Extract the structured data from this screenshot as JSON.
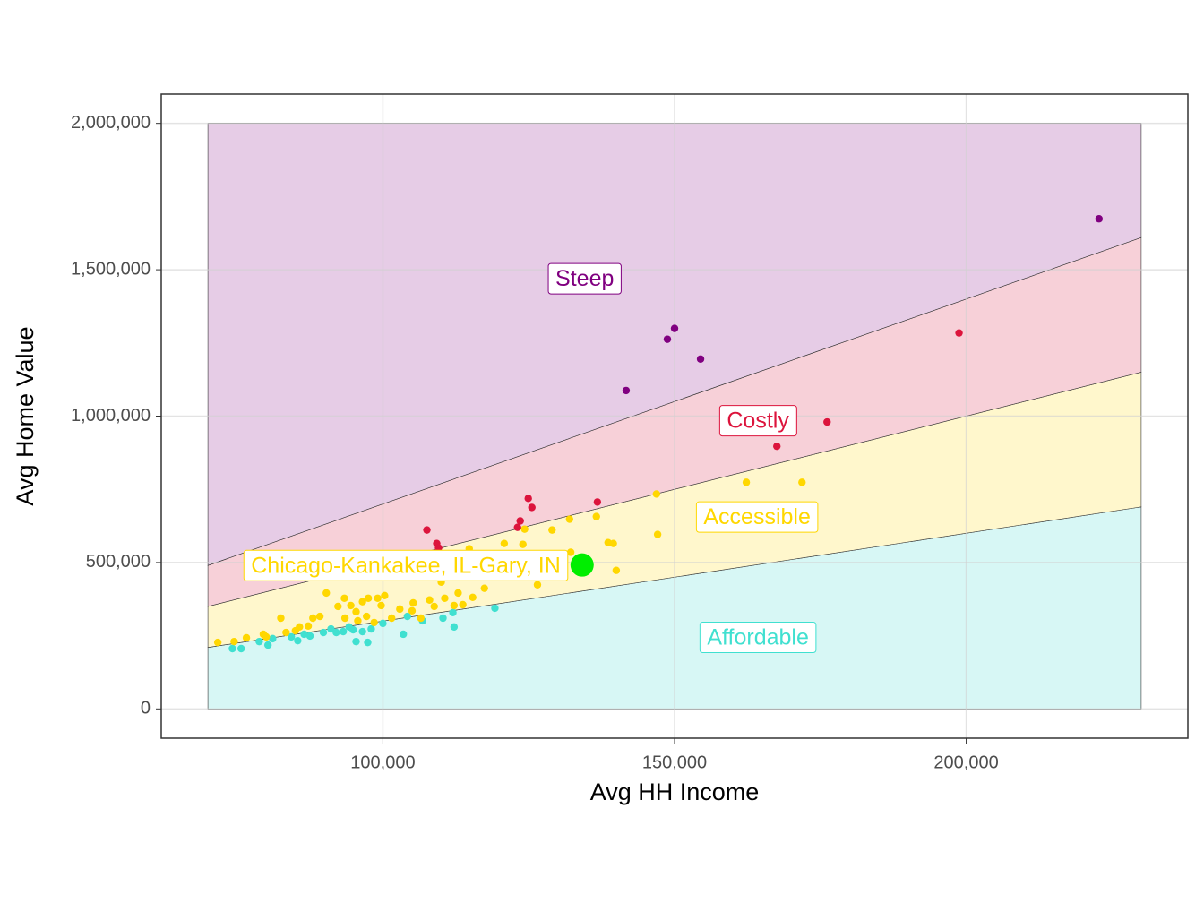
{
  "chart_data": {
    "type": "scatter",
    "x_label": "Avg HH Income",
    "y_label": "Avg Home Value",
    "xlim": [
      62000,
      238000
    ],
    "ylim": [
      -100000,
      2100000
    ],
    "xticks": [
      {
        "value": 100000,
        "label": "100,000"
      },
      {
        "value": 150000,
        "label": "150,000"
      },
      {
        "value": 200000,
        "label": "200,000"
      }
    ],
    "yticks": [
      0,
      {
        "value": 500000,
        "label": "500,000"
      },
      {
        "value": 1000000,
        "label": "1,000,000"
      },
      {
        "value": 1500000,
        "label": "1,500,000"
      },
      {
        "value": 2000000,
        "label": "2,000,000"
      }
    ],
    "grid": true,
    "band_x": [
      70000,
      230000
    ],
    "band_y_max": 2000000,
    "series": [
      {
        "name": "Affordable",
        "color": "#40e0d0",
        "fill": "#d7f7f5",
        "ratio_low": 0,
        "ratio_high": 3,
        "label_x": 164300,
        "label_y": 240000,
        "x": [
          119200,
          112000,
          110300,
          112200,
          106800,
          104200,
          103500,
          100000,
          98000,
          97400,
          96500,
          95400,
          94900,
          94200,
          93200,
          92000,
          91100,
          89800,
          87500,
          86500,
          85400,
          84300,
          81100,
          80300,
          78800,
          75700,
          74200
        ],
        "y": [
          344000,
          329000,
          310000,
          280000,
          301000,
          316000,
          255000,
          292000,
          273000,
          227000,
          264000,
          230000,
          270000,
          280000,
          264000,
          261000,
          273000,
          261000,
          249000,
          255000,
          233000,
          246000,
          240000,
          218000,
          230000,
          206000,
          206000
        ]
      },
      {
        "name": "Accessible",
        "color": "#ffd700",
        "fill": "#fff7cc",
        "ratio_low": 3,
        "ratio_high": 5,
        "label_x": 164150,
        "label_y": 651000,
        "x": [
          171850,
          162300,
          146900,
          147100,
          136600,
          132000,
          129000,
          124300,
          120800,
          124000,
          138600,
          139500,
          140000,
          132200,
          126500,
          114800,
          118200,
          117400,
          115400,
          112900,
          110600,
          112200,
          108800,
          113700,
          108000,
          105200,
          102900,
          101500,
          100300,
          99100,
          99700,
          97500,
          96500,
          95400,
          94500,
          93400,
          92300,
          90300,
          89200,
          88000,
          87200,
          85700,
          82500,
          83400,
          80000,
          76600,
          74500,
          71700,
          79500,
          85000,
          97200,
          98500,
          95700,
          93500,
          106500,
          105000,
          110000,
          120300,
          117900
        ],
        "y": [
          774000,
          774000,
          734000,
          596000,
          657000,
          648000,
          611000,
          614000,
          565000,
          562000,
          568000,
          565000,
          473000,
          535000,
          424000,
          547000,
          464000,
          412000,
          381000,
          396000,
          378000,
          353000,
          350000,
          356000,
          372000,
          362000,
          341000,
          310000,
          387000,
          378000,
          353000,
          378000,
          366000,
          332000,
          353000,
          378000,
          350000,
          396000,
          316000,
          310000,
          283000,
          280000,
          310000,
          261000,
          246000,
          243000,
          230000,
          227000,
          255000,
          267000,
          316000,
          295000,
          301000,
          310000,
          310000,
          335000,
          433000,
          525000,
          510000
        ]
      },
      {
        "name": "Costly",
        "color": "#dc143c",
        "fill": "#f7d0d8",
        "ratio_low": 5,
        "ratio_high": 7,
        "label_x": 164300,
        "label_y": 980000,
        "x": [
          198770,
          176150,
          167540,
          136770,
          124920,
          125540,
          123540,
          123080,
          107540,
          109230,
          109540
        ],
        "y": [
          1284000,
          980000,
          897000,
          706600,
          719000,
          688000,
          642000,
          620000,
          611000,
          565000,
          550000
        ]
      },
      {
        "name": "Steep",
        "color": "#800080",
        "fill": "#e6cce6",
        "ratio_low": 7,
        "ratio_high": null,
        "label_x": 134600,
        "label_y": 1465000,
        "x": [
          222770,
          150000,
          148770,
          154460,
          141700
        ],
        "y": [
          1674000,
          1299500,
          1262700,
          1195000,
          1087500
        ]
      }
    ],
    "highlight": {
      "name": "Chicago-Kankakee, IL-Gary, IN",
      "color": "#00ee00",
      "label_color": "#ffd700",
      "x": 134150,
      "y": 491500
    }
  }
}
